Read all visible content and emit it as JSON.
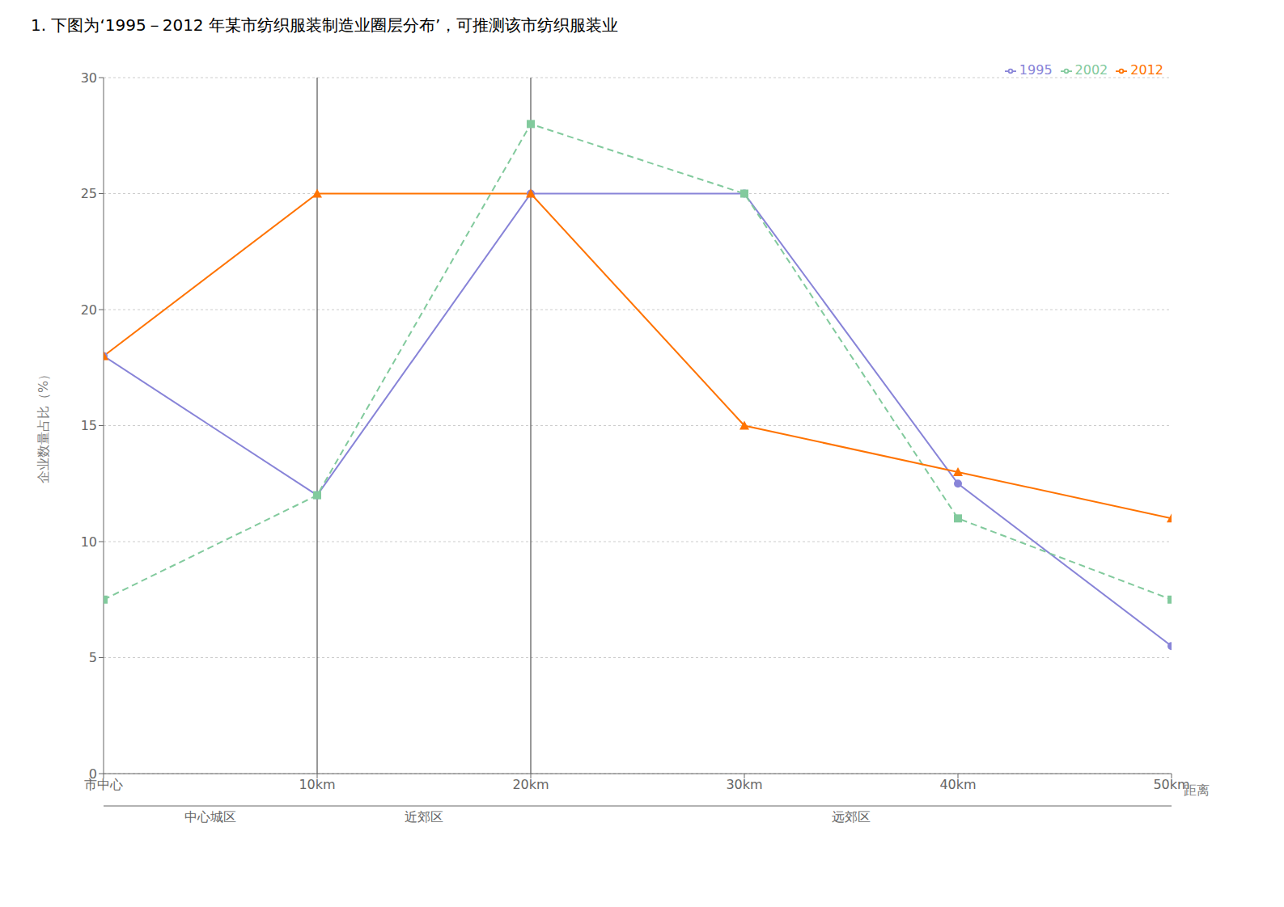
{
  "chart_data": {
    "type": "line",
    "title": "1. 下图为‘1995－2012 年某市纺织服装制造业圈层分布’，可推测该市纺织服装业",
    "x": [
      0,
      10,
      20,
      30,
      40,
      50
    ],
    "xlim": [
      0,
      50
    ],
    "xticks": [
      {
        "value": 0,
        "label": "市中心"
      },
      {
        "value": 10,
        "label": "10km"
      },
      {
        "value": 20,
        "label": "20km"
      },
      {
        "value": 30,
        "label": "30km"
      },
      {
        "value": 40,
        "label": "40km"
      },
      {
        "value": 50,
        "label": "50km"
      }
    ],
    "ylim": [
      0,
      30
    ],
    "yticks": [
      0,
      5,
      10,
      15,
      20,
      25,
      30
    ],
    "x_label": "距离",
    "y_label": "企业数量占比（%）",
    "series": [
      {
        "name": "1995",
        "color": "#8884d8",
        "marker": "circle",
        "line_style": "solid",
        "values": [
          18,
          12,
          25,
          25,
          12.5,
          5.5
        ]
      },
      {
        "name": "2002",
        "color": "#82ca9d",
        "marker": "square",
        "line_style": "dashed",
        "values": [
          7.5,
          12,
          28,
          25,
          11,
          7.5
        ]
      },
      {
        "name": "2012",
        "color": "#ff7300",
        "marker": "triangle",
        "line_style": "solid",
        "values": [
          18,
          25,
          25,
          15,
          13,
          11
        ]
      }
    ],
    "annotations": [
      {
        "text": "中心城区",
        "x_from": 0,
        "x_to": 10
      },
      {
        "text": "近郊区",
        "x_from": 10,
        "x_to": 20
      },
      {
        "text": "远郊区",
        "x_from": 20,
        "x_to": 50
      }
    ],
    "grid": "y",
    "legend": "upper right"
  }
}
